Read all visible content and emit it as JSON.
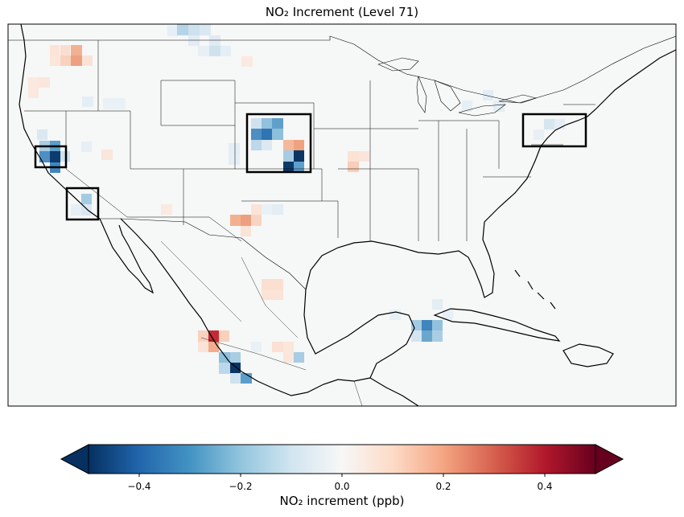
{
  "title": "NO₂ Increment (Level 71)",
  "colorbar": {
    "label": "NO₂ increment (ppb)",
    "vmin": -0.5,
    "vmax": 0.5,
    "ticks": [
      "−0.4",
      "−0.2",
      "0.0",
      "0.2",
      "0.4"
    ],
    "tick_values": [
      -0.4,
      -0.2,
      0.0,
      0.2,
      0.4
    ],
    "colors": [
      "#053061",
      "#2166ac",
      "#4393c3",
      "#92c5de",
      "#d1e5f0",
      "#f7f7f7",
      "#fddbc7",
      "#f4a582",
      "#d6604d",
      "#b2182b",
      "#67001f"
    ],
    "extend": "both"
  },
  "map": {
    "region": "United States, Mexico and Caribbean",
    "highlight_boxes": [
      "Northern California",
      "Southern California",
      "Colorado / Front Range",
      "Northeast corridor"
    ]
  }
}
